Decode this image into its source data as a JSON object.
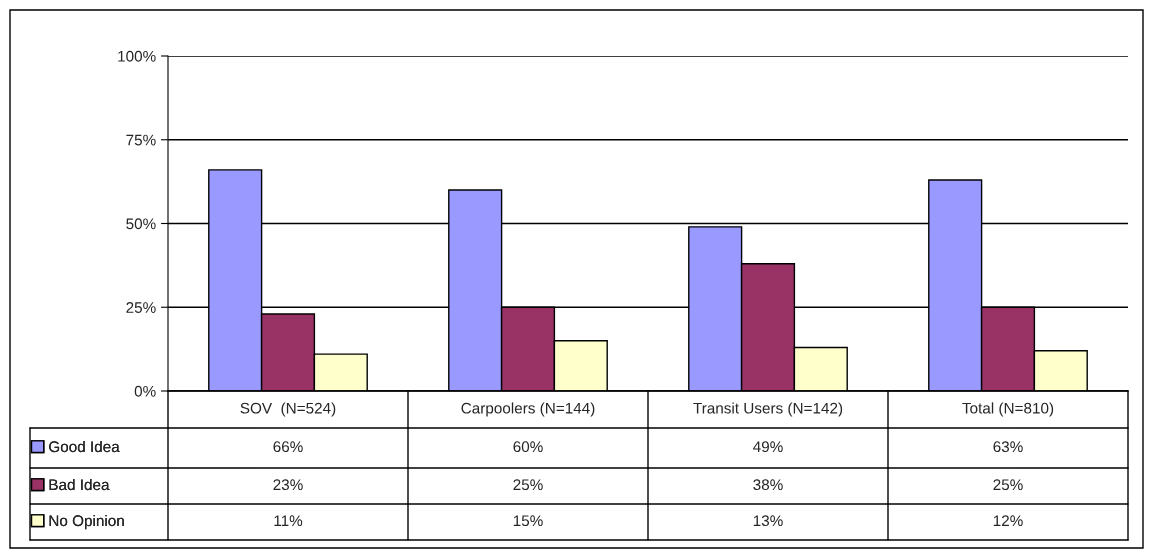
{
  "chart_data": {
    "type": "bar",
    "categories": [
      "SOV  (N=524)",
      "Carpoolers (N=144)",
      "Transit Users (N=142)",
      "Total (N=810)"
    ],
    "series": [
      {
        "name": "Good Idea",
        "color": "#9999ff",
        "values": [
          66,
          60,
          49,
          63
        ],
        "value_labels": [
          "66%",
          "60%",
          "49%",
          "63%"
        ]
      },
      {
        "name": "Bad Idea",
        "color": "#993366",
        "values": [
          23,
          25,
          38,
          25
        ],
        "value_labels": [
          "23%",
          "25%",
          "38%",
          "25%"
        ]
      },
      {
        "name": "No Opinion",
        "color": "#ffffcc",
        "values": [
          11,
          15,
          13,
          12
        ],
        "value_labels": [
          "11%",
          "15%",
          "13%",
          "12%"
        ]
      }
    ],
    "ylim": [
      0,
      100
    ],
    "yticks": [
      {
        "value": 0,
        "label": "0%"
      },
      {
        "value": 25,
        "label": "25%"
      },
      {
        "value": 50,
        "label": "50%"
      },
      {
        "value": 75,
        "label": "75%"
      },
      {
        "value": 100,
        "label": "100%"
      }
    ],
    "grid": "y",
    "legend": "bottom"
  }
}
